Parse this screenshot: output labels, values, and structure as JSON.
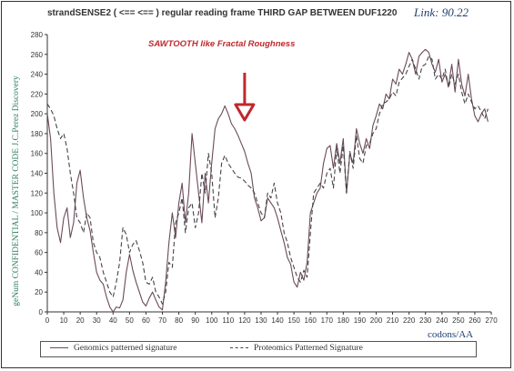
{
  "link_label": "Link: 90.22",
  "annotation": "SAWTOOTH like Fractal Roughness",
  "chart_data": {
    "type": "line",
    "title": "strandSENSE2 ( <== <== ) regular reading frame THIRD GAP BETWEEN DUF1220",
    "xlabel": "codons/AA",
    "ylabel": "geNum CONFIDENTIAL / MASTER CODE J.C.Perez Discovery",
    "xlim": [
      0,
      270
    ],
    "ylim": [
      0,
      280
    ],
    "xticks": [
      0,
      10,
      20,
      30,
      40,
      50,
      60,
      70,
      80,
      90,
      100,
      110,
      120,
      130,
      140,
      150,
      160,
      170,
      180,
      190,
      200,
      210,
      220,
      230,
      240,
      250,
      260,
      270
    ],
    "yticks": [
      0,
      20,
      40,
      60,
      80,
      100,
      120,
      140,
      160,
      180,
      200,
      220,
      240,
      260,
      280
    ],
    "grid": false,
    "legend_position": "bottom",
    "annotation_arrow_x": 120,
    "series": [
      {
        "name": "Genomics patterned signature",
        "color": "#6b4a5a",
        "style": "solid",
        "x": [
          0,
          2,
          4,
          6,
          8,
          10,
          12,
          14,
          16,
          18,
          20,
          22,
          24,
          26,
          28,
          30,
          32,
          34,
          36,
          38,
          40,
          42,
          44,
          46,
          48,
          50,
          52,
          54,
          56,
          58,
          60,
          62,
          64,
          66,
          68,
          70,
          72,
          74,
          76,
          78,
          80,
          82,
          84,
          86,
          88,
          90,
          92,
          94,
          96,
          98,
          100,
          102,
          104,
          106,
          108,
          110,
          112,
          114,
          116,
          118,
          120,
          122,
          124,
          126,
          128,
          130,
          132,
          134,
          136,
          138,
          140,
          142,
          144,
          146,
          148,
          150,
          152,
          154,
          156,
          158,
          160,
          162,
          164,
          166,
          168,
          170,
          172,
          174,
          176,
          178,
          180,
          182,
          184,
          186,
          188,
          190,
          192,
          194,
          196,
          198,
          200,
          202,
          204,
          206,
          208,
          210,
          212,
          214,
          216,
          218,
          220,
          222,
          224,
          226,
          228,
          230,
          232,
          234,
          236,
          238,
          240,
          242,
          244,
          246,
          248,
          250,
          252,
          254,
          256,
          258,
          260,
          262,
          264,
          266,
          268
        ],
        "y": [
          200,
          175,
          120,
          85,
          70,
          95,
          105,
          75,
          90,
          130,
          143,
          115,
          95,
          82,
          60,
          40,
          32,
          28,
          15,
          5,
          0,
          5,
          4,
          12,
          40,
          58,
          42,
          30,
          20,
          10,
          6,
          14,
          20,
          12,
          5,
          2,
          30,
          70,
          100,
          75,
          110,
          130,
          90,
          120,
          180,
          150,
          120,
          90,
          140,
          110,
          150,
          185,
          195,
          200,
          208,
          200,
          190,
          185,
          178,
          170,
          162,
          150,
          140,
          115,
          105,
          92,
          95,
          115,
          110,
          105,
          95,
          82,
          70,
          55,
          48,
          30,
          25,
          40,
          32,
          50,
          100,
          110,
          120,
          125,
          150,
          165,
          168,
          145,
          170,
          150,
          175,
          120,
          160,
          150,
          185,
          170,
          160,
          175,
          165,
          188,
          198,
          210,
          205,
          220,
          215,
          235,
          230,
          245,
          240,
          250,
          262,
          255,
          240,
          258,
          262,
          265,
          262,
          250,
          242,
          255,
          232,
          240,
          228,
          250,
          222,
          255,
          230,
          218,
          240,
          215,
          198,
          192,
          200,
          205,
          192
        ]
      },
      {
        "name": "Proteomics Patterned Signature",
        "color": "#444444",
        "style": "dashed",
        "x": [
          0,
          2,
          4,
          6,
          8,
          10,
          12,
          14,
          16,
          18,
          20,
          22,
          24,
          26,
          28,
          30,
          32,
          34,
          36,
          38,
          40,
          42,
          44,
          46,
          48,
          50,
          52,
          54,
          56,
          58,
          60,
          62,
          64,
          66,
          68,
          70,
          72,
          74,
          76,
          78,
          80,
          82,
          84,
          86,
          88,
          90,
          92,
          94,
          96,
          98,
          100,
          102,
          104,
          106,
          108,
          110,
          112,
          114,
          116,
          118,
          120,
          122,
          124,
          126,
          128,
          130,
          132,
          134,
          136,
          138,
          140,
          142,
          144,
          146,
          148,
          150,
          152,
          154,
          156,
          158,
          160,
          162,
          164,
          166,
          168,
          170,
          172,
          174,
          176,
          178,
          180,
          182,
          184,
          186,
          188,
          190,
          192,
          194,
          196,
          198,
          200,
          202,
          204,
          206,
          208,
          210,
          212,
          214,
          216,
          218,
          220,
          222,
          224,
          226,
          228,
          230,
          232,
          234,
          236,
          238,
          240,
          242,
          244,
          246,
          248,
          250,
          252,
          254,
          256,
          258,
          260,
          262,
          264,
          266,
          268
        ],
        "y": [
          210,
          205,
          198,
          185,
          175,
          180,
          165,
          140,
          120,
          95,
          90,
          80,
          100,
          95,
          70,
          60,
          55,
          40,
          30,
          20,
          15,
          30,
          50,
          85,
          78,
          60,
          68,
          72,
          62,
          50,
          30,
          28,
          35,
          20,
          15,
          8,
          20,
          50,
          45,
          90,
          100,
          115,
          80,
          105,
          110,
          85,
          100,
          140,
          120,
          160,
          140,
          95,
          115,
          150,
          158,
          150,
          145,
          140,
          136,
          135,
          132,
          128,
          125,
          120,
          110,
          100,
          95,
          120,
          115,
          130,
          110,
          100,
          80,
          70,
          55,
          45,
          35,
          30,
          42,
          35,
          80,
          120,
          125,
          130,
          125,
          140,
          145,
          125,
          165,
          140,
          168,
          120,
          162,
          145,
          178,
          155,
          150,
          168,
          170,
          180,
          185,
          200,
          210,
          212,
          215,
          222,
          218,
          232,
          236,
          240,
          248,
          255,
          245,
          235,
          248,
          250,
          258,
          255,
          235,
          240,
          235,
          245,
          226,
          240,
          230,
          240,
          222,
          210,
          220,
          212,
          205,
          208,
          202,
          195,
          205
        ]
      }
    ]
  }
}
